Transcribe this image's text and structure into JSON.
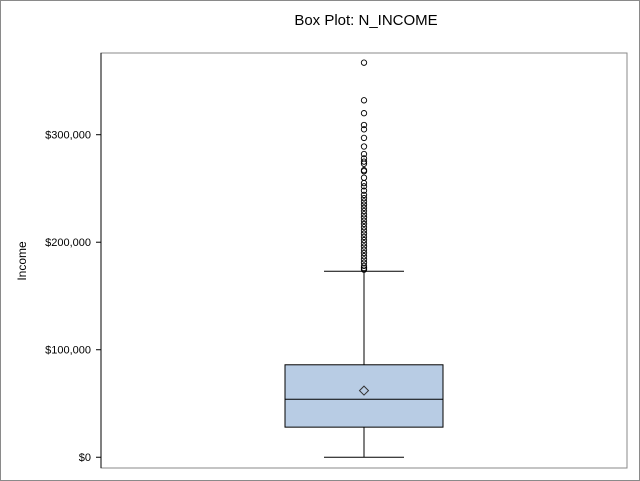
{
  "chart_data": {
    "type": "box",
    "title": "Box Plot: N_INCOME",
    "xlabel": "",
    "ylabel": "Income",
    "ylim": [
      -10000,
      376000
    ],
    "yticks": [
      0,
      100000,
      200000,
      300000
    ],
    "ytick_labels": [
      "$0",
      "$100,000",
      "$200,000",
      "$300,000"
    ],
    "grid": false,
    "box": {
      "min": 0,
      "q1": 28000,
      "median": 54000,
      "mean": 62000,
      "q3": 86000,
      "upper_whisker": 173000
    },
    "outliers": [
      367000,
      332000,
      320000,
      309000,
      305000,
      297000,
      289000,
      282000,
      278000,
      275000,
      273000,
      267000,
      266000,
      260000,
      255000,
      252000,
      248000,
      244000,
      241000,
      238000,
      235000,
      232000,
      229000,
      226000,
      223000,
      220000,
      217000,
      214000,
      211000,
      208000,
      205000,
      202000,
      199000,
      196000,
      193000,
      190000,
      187000,
      184000,
      181000,
      178000,
      176000,
      174500
    ],
    "colors": {
      "box_fill": "#b8cce4",
      "line": "#000000",
      "outlier": "#000000"
    }
  }
}
